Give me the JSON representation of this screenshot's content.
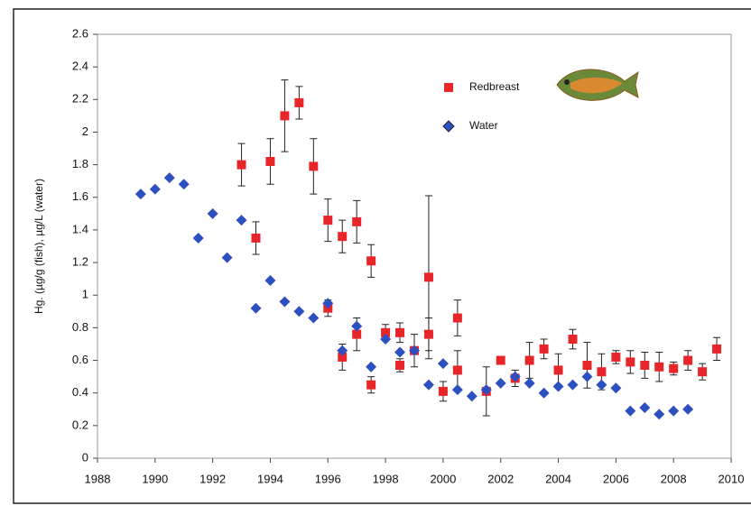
{
  "chart_data": {
    "type": "scatter",
    "y_label": "Hg. (µg/g (fish), µg/L (water)",
    "xlim": [
      1988,
      2010
    ],
    "xticks": [
      1988,
      1990,
      1992,
      1994,
      1996,
      1998,
      2000,
      2002,
      2004,
      2006,
      2008,
      2010
    ],
    "ylim": [
      0,
      2.6
    ],
    "yticks": [
      0,
      0.2,
      0.4,
      0.6,
      0.8,
      1,
      1.2,
      1.4,
      1.6,
      1.8,
      2,
      2.2,
      2.4,
      2.6
    ],
    "legend": "top-right",
    "series": [
      {
        "name": "Redbreast",
        "color": "#e8262a",
        "marker": "square",
        "x": [
          1993,
          1993.5,
          1994,
          1994.5,
          1995,
          1995.5,
          1996,
          1996.5,
          1997,
          1997.5,
          1996,
          1996.5,
          1997,
          1997.5,
          1998,
          1998.5,
          1998.5,
          1999,
          1999.5,
          1999.5,
          2000,
          2000.5,
          2000.5,
          2001.5,
          2002,
          2002.5,
          2003,
          2003.5,
          2004,
          2004.5,
          2005,
          2005.5,
          2006,
          2006.5,
          2007,
          2007.5,
          2008,
          2008.5,
          2009,
          2009.5
        ],
        "values": [
          1.8,
          1.35,
          1.82,
          2.1,
          2.18,
          1.79,
          1.46,
          1.36,
          1.45,
          1.21,
          0.92,
          0.62,
          0.76,
          0.45,
          0.77,
          0.77,
          0.57,
          0.66,
          1.11,
          0.76,
          0.41,
          0.86,
          0.54,
          0.41,
          0.6,
          0.49,
          0.6,
          0.67,
          0.54,
          0.73,
          0.57,
          0.53,
          0.62,
          0.59,
          0.57,
          0.56,
          0.55,
          0.6,
          0.53,
          0.67
        ],
        "errors": [
          0.13,
          0.1,
          0.14,
          0.22,
          0.1,
          0.17,
          0.13,
          0.1,
          0.13,
          0.1,
          0.05,
          0.08,
          0.1,
          0.05,
          0.05,
          0.06,
          0.04,
          0.1,
          0.5,
          0.1,
          0.06,
          0.11,
          0.12,
          0.15,
          0.01,
          0.05,
          0.11,
          0.06,
          0.1,
          0.06,
          0.14,
          0.11,
          0.04,
          0.07,
          0.08,
          0.09,
          0.04,
          0.06,
          0.05,
          0.07
        ]
      },
      {
        "name": "Water",
        "color": "#2e4fc0",
        "marker": "diamond",
        "x": [
          1989.5,
          1990,
          1990.5,
          1991,
          1991.5,
          1992,
          1992.5,
          1993,
          1993.5,
          1994,
          1994.5,
          1995,
          1995.5,
          1996,
          1996.5,
          1997,
          1997.5,
          1998,
          1998.5,
          1999,
          1999.5,
          2000,
          2000.5,
          2001,
          2001.5,
          2002,
          2002.5,
          2003,
          2003.5,
          2004,
          2004.5,
          2005,
          2005.5,
          2006,
          2006.5,
          2007,
          2007.5,
          2008,
          2008.5
        ],
        "values": [
          1.62,
          1.65,
          1.72,
          1.68,
          1.35,
          1.5,
          1.23,
          1.46,
          0.92,
          1.09,
          0.96,
          0.9,
          0.86,
          0.95,
          0.66,
          0.81,
          0.56,
          0.73,
          0.65,
          0.66,
          0.45,
          0.58,
          0.42,
          0.38,
          0.42,
          0.46,
          0.5,
          0.46,
          0.4,
          0.44,
          0.45,
          0.5,
          0.45,
          0.43,
          0.29,
          0.31,
          0.27,
          0.29,
          0.3
        ]
      }
    ]
  }
}
